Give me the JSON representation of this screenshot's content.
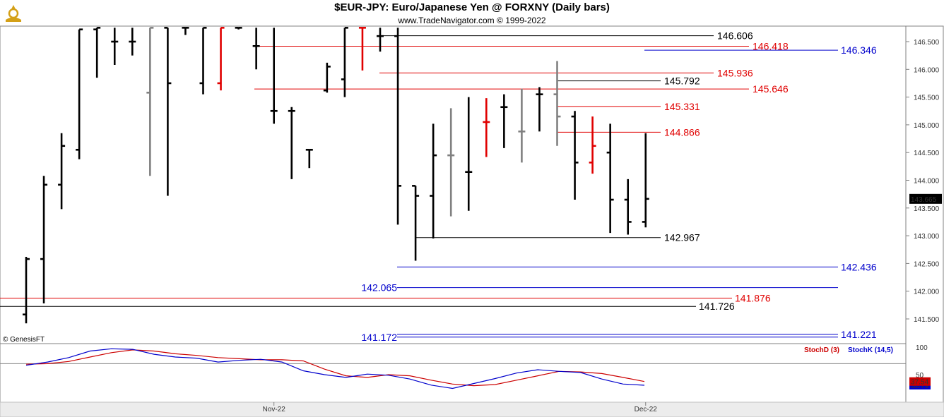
{
  "header": {
    "title": "$EUR-JPY:  Euro/Japanese Yen @ FORXNY  (Daily bars)",
    "subtitle": "www.TradeNavigator.com © 1999-2022",
    "logo_icon": "trade-navigator-logo-icon"
  },
  "chart_data": [
    {
      "type": "ohlc",
      "title": "$EUR-JPY:  Euro/Japanese Yen @ FORXNY  (Daily bars)",
      "ylim": [
        141.0,
        146.75
      ],
      "y_ticks": [
        "141.500",
        "142.000",
        "142.500",
        "143.000",
        "143.500",
        "144.000",
        "144.500",
        "145.000",
        "145.500",
        "146.000",
        "146.500"
      ],
      "x_labels": [
        {
          "label": "Nov-22",
          "index": 14
        },
        {
          "label": "Dec-22",
          "index": 35
        }
      ],
      "last_price": "143.665",
      "watermark": "© GenesisFT",
      "colors": {
        "up_bar": "#000000",
        "neutral_bar": "#808080",
        "key_bar": "#e00000",
        "price_box": "#000000"
      },
      "bars": [
        {
          "o": 141.58,
          "h": 142.62,
          "l": 141.42,
          "c": 142.58,
          "color": "black"
        },
        {
          "o": 142.58,
          "h": 144.08,
          "l": 141.78,
          "c": 143.92,
          "color": "black"
        },
        {
          "o": 143.92,
          "h": 144.85,
          "l": 143.48,
          "c": 144.62,
          "color": "black"
        },
        {
          "o": 144.55,
          "h": 146.72,
          "l": 144.38,
          "c": 146.72,
          "color": "black"
        },
        {
          "o": 146.72,
          "h": 146.75,
          "l": 145.85,
          "c": 146.75,
          "color": "black"
        },
        {
          "o": 146.5,
          "h": 146.75,
          "l": 146.08,
          "c": 146.5,
          "color": "black"
        },
        {
          "o": 146.5,
          "h": 146.75,
          "l": 146.25,
          "c": 146.5,
          "color": "black"
        },
        {
          "o": 145.58,
          "h": 146.75,
          "l": 144.08,
          "c": 146.75,
          "color": "gray"
        },
        {
          "o": 146.75,
          "h": 146.75,
          "l": 143.72,
          "c": 145.75,
          "color": "black"
        },
        {
          "o": 146.75,
          "h": 146.75,
          "l": 146.62,
          "c": 146.75,
          "color": "black"
        },
        {
          "o": 145.75,
          "h": 146.75,
          "l": 145.55,
          "c": 146.75,
          "color": "black"
        },
        {
          "o": 145.75,
          "h": 146.75,
          "l": 145.62,
          "c": 146.75,
          "color": "red"
        },
        {
          "o": 146.75,
          "h": 146.75,
          "l": 146.72,
          "c": 146.75,
          "color": "black"
        },
        {
          "o": 146.42,
          "h": 146.75,
          "l": 146.0,
          "c": 146.42,
          "color": "black"
        },
        {
          "o": 145.25,
          "h": 146.75,
          "l": 145.02,
          "c": 145.25,
          "color": "black"
        },
        {
          "o": 145.25,
          "h": 145.32,
          "l": 144.02,
          "c": 145.25,
          "color": "black"
        },
        {
          "o": 144.55,
          "h": 144.55,
          "l": 144.22,
          "c": 144.55,
          "color": "black"
        },
        {
          "o": 145.62,
          "h": 146.12,
          "l": 145.58,
          "c": 146.05,
          "color": "black"
        },
        {
          "o": 145.82,
          "h": 146.75,
          "l": 145.5,
          "c": 146.75,
          "color": "black"
        },
        {
          "o": 146.75,
          "h": 146.75,
          "l": 145.98,
          "c": 146.75,
          "color": "red"
        },
        {
          "o": 146.6,
          "h": 146.75,
          "l": 146.32,
          "c": 146.6,
          "color": "black"
        },
        {
          "o": 146.6,
          "h": 146.75,
          "l": 143.2,
          "c": 143.9,
          "color": "black"
        },
        {
          "o": 143.9,
          "h": 143.9,
          "l": 142.55,
          "c": 143.72,
          "color": "black"
        },
        {
          "o": 143.72,
          "h": 145.02,
          "l": 142.95,
          "c": 144.45,
          "color": "black"
        },
        {
          "o": 144.45,
          "h": 145.3,
          "l": 143.35,
          "c": 144.45,
          "color": "gray"
        },
        {
          "o": 144.15,
          "h": 145.5,
          "l": 143.45,
          "c": 144.15,
          "color": "black"
        },
        {
          "o": 145.05,
          "h": 145.48,
          "l": 144.42,
          "c": 145.05,
          "color": "red"
        },
        {
          "o": 145.32,
          "h": 145.55,
          "l": 144.58,
          "c": 145.32,
          "color": "black"
        },
        {
          "o": 144.88,
          "h": 145.65,
          "l": 144.32,
          "c": 144.88,
          "color": "gray"
        },
        {
          "o": 145.55,
          "h": 145.68,
          "l": 144.88,
          "c": 145.55,
          "color": "black"
        },
        {
          "o": 145.55,
          "h": 146.15,
          "l": 144.62,
          "c": 145.15,
          "color": "gray"
        },
        {
          "o": 145.15,
          "h": 145.25,
          "l": 143.65,
          "c": 144.32,
          "color": "black"
        },
        {
          "o": 144.32,
          "h": 145.15,
          "l": 144.12,
          "c": 144.62,
          "color": "red"
        },
        {
          "o": 144.5,
          "h": 145.02,
          "l": 143.05,
          "c": 143.65,
          "color": "black"
        },
        {
          "o": 143.65,
          "h": 144.02,
          "l": 143.02,
          "c": 143.25,
          "color": "black"
        },
        {
          "o": 143.25,
          "h": 144.85,
          "l": 143.15,
          "c": 143.665,
          "color": "black"
        }
      ],
      "levels": [
        {
          "value": "146.606",
          "color": "#000000",
          "group": "black"
        },
        {
          "value": "146.418",
          "color": "#e00000",
          "group": "red"
        },
        {
          "value": "146.346",
          "color": "#0000cc",
          "group": "blue"
        },
        {
          "value": "145.936",
          "color": "#e00000",
          "group": "red"
        },
        {
          "value": "145.792",
          "color": "#000000",
          "group": "black"
        },
        {
          "value": "145.646",
          "color": "#e00000",
          "group": "red"
        },
        {
          "value": "145.331",
          "color": "#e00000",
          "group": "red"
        },
        {
          "value": "144.866",
          "color": "#e00000",
          "group": "red"
        },
        {
          "value": "142.967",
          "color": "#000000",
          "group": "black"
        },
        {
          "value": "142.436",
          "color": "#0000cc",
          "group": "blue"
        },
        {
          "value": "142.065",
          "color": "#0000cc",
          "group": "blue"
        },
        {
          "value": "141.876",
          "color": "#e00000",
          "group": "red"
        },
        {
          "value": "141.726",
          "color": "#000000",
          "group": "black"
        },
        {
          "value": "141.221",
          "color": "#0000cc",
          "group": "blue"
        },
        {
          "value": "141.172",
          "color": "#0000cc",
          "group": "blue"
        }
      ]
    },
    {
      "type": "line",
      "title": "",
      "ylim": [
        0,
        100
      ],
      "y_ticks": [
        "100",
        "50"
      ],
      "reference_line": 70,
      "series": [
        {
          "name": "StochD (3)",
          "color": "#cc0000",
          "last": "37.54",
          "values": [
            69,
            70,
            74,
            82,
            90,
            95,
            93,
            88,
            85,
            81,
            79,
            77,
            77,
            75,
            60,
            48,
            45,
            50,
            48,
            40,
            33,
            30,
            32,
            40,
            48,
            56,
            55,
            52,
            45,
            37.54
          ]
        },
        {
          "name": "StochK (14,5)",
          "color": "#0000cc",
          "last": "30.79",
          "values": [
            67,
            73,
            81,
            93,
            97,
            96,
            87,
            82,
            80,
            73,
            76,
            78,
            73,
            57,
            50,
            45,
            51,
            49,
            42,
            31,
            25,
            34,
            43,
            53,
            59,
            56,
            54,
            42,
            33,
            30.79
          ]
        }
      ]
    }
  ]
}
